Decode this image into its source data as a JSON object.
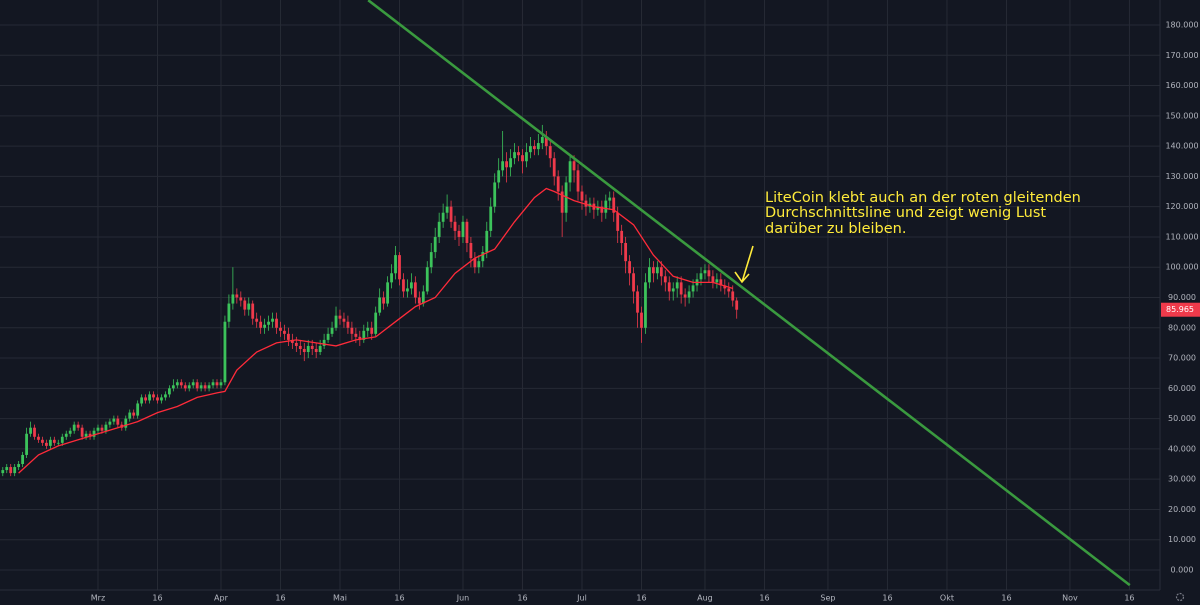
{
  "chart_data": {
    "type": "candlestick",
    "xlim": [
      35.3,
      327.7
    ],
    "ylim": [
      0,
      180
    ],
    "xticks": [
      {
        "value": 60,
        "label": "Mrz"
      },
      {
        "value": 75,
        "label": "16"
      },
      {
        "value": 91,
        "label": "Apr"
      },
      {
        "value": 106,
        "label": "16"
      },
      {
        "value": 121,
        "label": "Mai"
      },
      {
        "value": 136,
        "label": "16"
      },
      {
        "value": 152,
        "label": "Jun"
      },
      {
        "value": 167,
        "label": "16"
      },
      {
        "value": 182,
        "label": "Jul"
      },
      {
        "value": 197,
        "label": "16"
      },
      {
        "value": 213,
        "label": "Aug"
      },
      {
        "value": 228,
        "label": "16"
      },
      {
        "value": 244,
        "label": "Sep"
      },
      {
        "value": 259,
        "label": "16"
      },
      {
        "value": 274,
        "label": "Okt"
      },
      {
        "value": 289,
        "label": "16"
      },
      {
        "value": 305,
        "label": "Nov"
      },
      {
        "value": 320,
        "label": "16"
      }
    ],
    "yticks": [
      {
        "value": 0,
        "label": "0.000"
      },
      {
        "value": 10,
        "label": "10.000"
      },
      {
        "value": 20,
        "label": "20.000"
      },
      {
        "value": 30,
        "label": "30.000"
      },
      {
        "value": 40,
        "label": "40.000"
      },
      {
        "value": 50,
        "label": "50.000"
      },
      {
        "value": 60,
        "label": "60.000"
      },
      {
        "value": 70,
        "label": "70.000"
      },
      {
        "value": 80,
        "label": "80.000"
      },
      {
        "value": 90,
        "label": "90.000"
      },
      {
        "value": 100,
        "label": "100.000"
      },
      {
        "value": 110,
        "label": "110.000"
      },
      {
        "value": 120,
        "label": "120.000"
      },
      {
        "value": 130,
        "label": "130.000"
      },
      {
        "value": 140,
        "label": "140.000"
      },
      {
        "value": 150,
        "label": "150.000"
      },
      {
        "value": 160,
        "label": "160.000"
      },
      {
        "value": 170,
        "label": "170.000"
      },
      {
        "value": 180,
        "label": "180.000"
      }
    ],
    "grid": true,
    "up_color": "#3cc35b",
    "down_color": "#ef3a4b",
    "x": [
      36,
      37,
      38,
      39,
      40,
      41,
      42,
      43,
      44,
      45,
      46,
      47,
      48,
      49,
      50,
      51,
      52,
      53,
      54,
      55,
      56,
      57,
      58,
      59,
      60,
      61,
      62,
      63,
      64,
      65,
      66,
      67,
      68,
      69,
      70,
      71,
      72,
      73,
      74,
      75,
      76,
      77,
      78,
      79,
      80,
      81,
      82,
      83,
      84,
      85,
      86,
      87,
      88,
      89,
      90,
      91,
      92,
      93,
      94,
      95,
      96,
      97,
      98,
      99,
      100,
      101,
      102,
      103,
      104,
      105,
      106,
      107,
      108,
      109,
      110,
      111,
      112,
      113,
      114,
      115,
      116,
      117,
      118,
      119,
      120,
      121,
      122,
      123,
      124,
      125,
      126,
      127,
      128,
      129,
      130,
      131,
      132,
      133,
      134,
      135,
      136,
      137,
      138,
      139,
      140,
      141,
      142,
      143,
      144,
      145,
      146,
      147,
      148,
      149,
      150,
      151,
      152,
      153,
      154,
      155,
      156,
      157,
      158,
      159,
      160,
      161,
      162,
      163,
      164,
      165,
      166,
      167,
      168,
      169,
      170,
      171,
      172,
      173,
      174,
      175,
      176,
      177,
      178,
      179,
      180,
      181,
      182,
      183,
      184,
      185,
      186,
      187,
      188,
      189,
      190,
      191,
      192,
      193,
      194,
      195,
      196,
      197,
      198,
      199,
      200,
      201,
      202,
      203,
      204,
      205,
      206,
      207,
      208,
      209,
      210,
      211,
      212,
      213,
      214,
      215,
      216,
      217,
      218,
      219,
      220,
      221
    ],
    "open": [
      32,
      33,
      34,
      32,
      34,
      35,
      38,
      45,
      47,
      44,
      43,
      42,
      41,
      43,
      42,
      42,
      44,
      45,
      46,
      48,
      47,
      44,
      45,
      44,
      46,
      47,
      46,
      48,
      49,
      50,
      48,
      47,
      50,
      52,
      51,
      55,
      57,
      56,
      58,
      57,
      56,
      57,
      58,
      60,
      61,
      62,
      61,
      60,
      61,
      62,
      60,
      61,
      60,
      61,
      62,
      61,
      62,
      82,
      88,
      91,
      90,
      89,
      86,
      88,
      83,
      82,
      80,
      81,
      82,
      83,
      80,
      79,
      78,
      76,
      75,
      74,
      73,
      72,
      74,
      73,
      72,
      74,
      76,
      78,
      80,
      84,
      83,
      82,
      80,
      78,
      77,
      76,
      79,
      80,
      78,
      85,
      90,
      88,
      95,
      98,
      104,
      96,
      92,
      93,
      95,
      90,
      88,
      92,
      100,
      105,
      110,
      115,
      118,
      120,
      115,
      112,
      110,
      115,
      108,
      103,
      100,
      102,
      105,
      112,
      120,
      128,
      132,
      135,
      133,
      136,
      138,
      137,
      135,
      138,
      140,
      139,
      141,
      143,
      140,
      136,
      130,
      125,
      118,
      128,
      135,
      132,
      125,
      122,
      120,
      121,
      119,
      120,
      118,
      122,
      123,
      118,
      112,
      108,
      102,
      98,
      92,
      85,
      80,
      95,
      100,
      98,
      100,
      97,
      95,
      92,
      93,
      95,
      91,
      90,
      92,
      94,
      96,
      98,
      99,
      97,
      95,
      96,
      94,
      93,
      92,
      89
    ],
    "high": [
      34,
      35,
      35,
      35,
      36,
      39,
      47,
      49,
      48,
      45,
      44,
      43,
      44,
      44,
      43,
      45,
      46,
      47,
      49,
      49,
      48,
      46,
      46,
      47,
      48,
      48,
      49,
      50,
      51,
      51,
      49,
      51,
      53,
      53,
      56,
      58,
      58,
      59,
      59,
      58,
      58,
      59,
      61,
      63,
      63,
      63,
      62,
      62,
      63,
      63,
      62,
      62,
      62,
      63,
      63,
      63,
      84,
      91,
      100,
      93,
      92,
      90,
      90,
      89,
      85,
      84,
      83,
      84,
      85,
      85,
      82,
      81,
      80,
      78,
      77,
      76,
      75,
      76,
      76,
      75,
      76,
      78,
      80,
      82,
      87,
      86,
      85,
      84,
      82,
      80,
      79,
      81,
      82,
      82,
      87,
      93,
      92,
      97,
      101,
      107,
      105,
      98,
      96,
      98,
      97,
      92,
      94,
      102,
      108,
      113,
      118,
      121,
      124,
      122,
      117,
      114,
      117,
      116,
      110,
      105,
      104,
      107,
      115,
      123,
      131,
      136,
      145,
      138,
      139,
      141,
      140,
      139,
      141,
      143,
      142,
      144,
      147,
      145,
      142,
      138,
      132,
      127,
      130,
      137,
      137,
      134,
      127,
      124,
      123,
      123,
      122,
      122,
      124,
      125,
      125,
      120,
      114,
      110,
      104,
      100,
      94,
      87,
      98,
      103,
      102,
      102,
      102,
      99,
      97,
      95,
      97,
      97,
      93,
      94,
      96,
      98,
      100,
      101,
      101,
      99,
      98,
      98,
      96,
      95,
      94,
      90
    ],
    "low": [
      31,
      32,
      31,
      31,
      33,
      34,
      37,
      44,
      43,
      42,
      41,
      40,
      40,
      41,
      41,
      41,
      43,
      44,
      45,
      46,
      43,
      43,
      43,
      43,
      45,
      45,
      45,
      47,
      48,
      47,
      46,
      46,
      49,
      50,
      50,
      54,
      55,
      55,
      56,
      55,
      55,
      56,
      57,
      59,
      60,
      60,
      59,
      59,
      60,
      59,
      59,
      59,
      59,
      60,
      60,
      60,
      61,
      80,
      86,
      88,
      87,
      84,
      84,
      81,
      80,
      78,
      78,
      79,
      80,
      78,
      77,
      76,
      74,
      73,
      72,
      71,
      69,
      70,
      71,
      70,
      71,
      73,
      75,
      77,
      79,
      81,
      80,
      78,
      76,
      75,
      74,
      75,
      77,
      76,
      77,
      84,
      86,
      87,
      93,
      96,
      94,
      90,
      90,
      91,
      88,
      86,
      87,
      91,
      98,
      103,
      108,
      113,
      116,
      113,
      109,
      107,
      108,
      105,
      100,
      98,
      98,
      100,
      103,
      110,
      118,
      126,
      130,
      128,
      130,
      134,
      135,
      131,
      133,
      136,
      137,
      137,
      139,
      137,
      133,
      127,
      122,
      110,
      115,
      125,
      128,
      122,
      119,
      117,
      118,
      116,
      117,
      115,
      116,
      119,
      115,
      108,
      104,
      98,
      94,
      88,
      80,
      75,
      78,
      93,
      95,
      96,
      94,
      92,
      89,
      89,
      90,
      88,
      87,
      88,
      90,
      92,
      94,
      96,
      95,
      93,
      93,
      92,
      91,
      90,
      87,
      83
    ],
    "close": [
      33,
      34,
      32,
      34,
      35,
      38,
      45,
      47,
      44,
      43,
      42,
      41,
      43,
      42,
      42,
      44,
      45,
      46,
      48,
      47,
      44,
      45,
      44,
      46,
      47,
      46,
      48,
      49,
      50,
      48,
      47,
      50,
      52,
      51,
      55,
      57,
      56,
      58,
      57,
      56,
      57,
      58,
      60,
      61,
      62,
      61,
      60,
      61,
      62,
      60,
      61,
      60,
      61,
      62,
      61,
      62,
      82,
      88,
      91,
      90,
      89,
      86,
      88,
      83,
      82,
      80,
      81,
      82,
      83,
      80,
      79,
      78,
      76,
      75,
      74,
      73,
      72,
      74,
      73,
      72,
      74,
      76,
      78,
      80,
      84,
      83,
      82,
      80,
      78,
      77,
      76,
      79,
      80,
      78,
      85,
      90,
      88,
      95,
      98,
      104,
      96,
      92,
      93,
      95,
      90,
      88,
      92,
      100,
      105,
      110,
      115,
      118,
      120,
      115,
      112,
      110,
      115,
      108,
      103,
      100,
      102,
      105,
      112,
      120,
      128,
      132,
      135,
      133,
      136,
      138,
      137,
      135,
      138,
      140,
      139,
      141,
      143,
      140,
      136,
      130,
      125,
      118,
      128,
      135,
      132,
      125,
      122,
      120,
      121,
      119,
      120,
      118,
      122,
      123,
      118,
      112,
      108,
      102,
      98,
      92,
      85,
      80,
      95,
      100,
      98,
      100,
      97,
      95,
      92,
      93,
      95,
      91,
      90,
      92,
      94,
      96,
      98,
      99,
      97,
      95,
      96,
      94,
      93,
      92,
      89,
      85.965
    ],
    "moving_average": {
      "color": "#ff2b3a",
      "x": [
        40,
        45,
        50,
        55,
        60,
        65,
        70,
        75,
        80,
        85,
        90,
        92,
        95,
        100,
        105,
        110,
        115,
        120,
        125,
        130,
        135,
        140,
        145,
        150,
        155,
        160,
        165,
        170,
        173,
        175,
        180,
        185,
        190,
        195,
        200,
        205,
        210,
        215,
        220
      ],
      "values": [
        32,
        38,
        41,
        43,
        45,
        47,
        49,
        52,
        54,
        57,
        58.5,
        59,
        66,
        72,
        75,
        76,
        75,
        74,
        76,
        77,
        82,
        87,
        90,
        98,
        103,
        106,
        115,
        123,
        126,
        125,
        122,
        120,
        119,
        114,
        104,
        97,
        95,
        95,
        93
      ]
    },
    "trendline": {
      "color": "#3a9a3f",
      "x": [
        128.1,
        320.1
      ],
      "values": [
        188.2,
        -5
      ]
    },
    "last_price": 85.965,
    "annotation": [
      "LiteCoin klebt auch an der roten gleitenden",
      "Durchschnittsline und zeigt wenig Lust",
      "darüber zu bleiben."
    ]
  }
}
